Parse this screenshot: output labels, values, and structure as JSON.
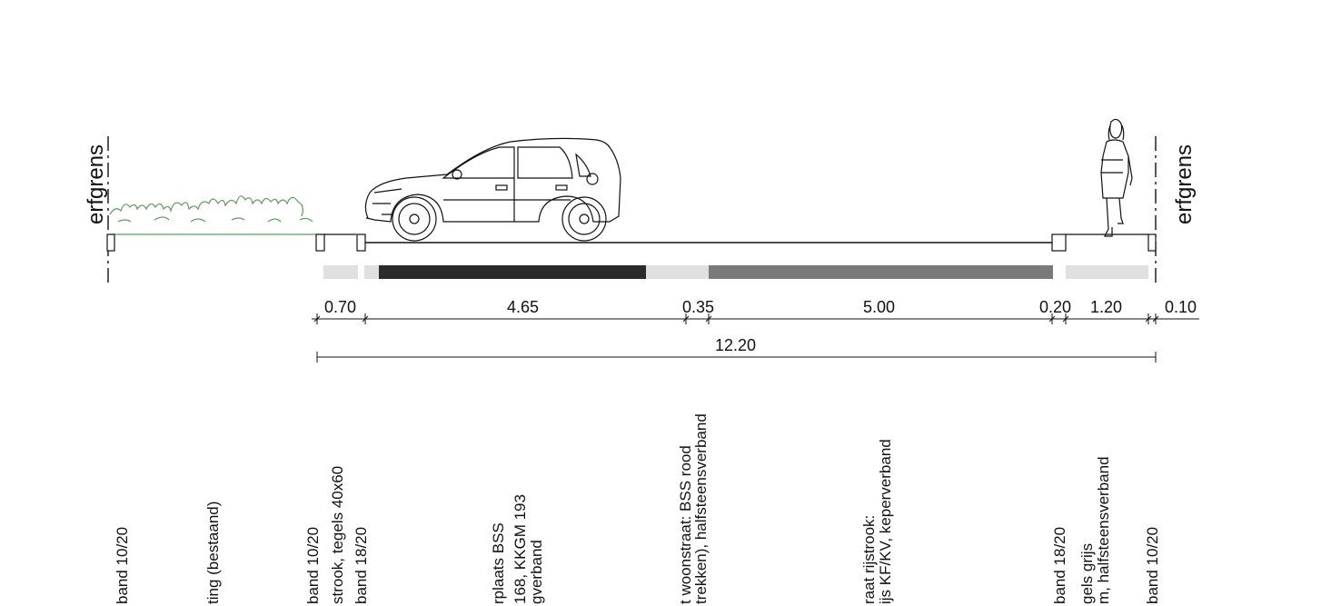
{
  "boundary_left": "erfgrens",
  "boundary_right": "erfgrens",
  "dimensions": [
    "0.70",
    "4.65",
    "0.35",
    "5.00",
    "0.20",
    "1.20",
    "0.10"
  ],
  "total": "12.20",
  "labels": {
    "a": [
      "band 10/20"
    ],
    "b": [
      "ting (bestaand)"
    ],
    "c": [
      "band 10/20",
      "strook, tegels 40x60",
      "band 18/20"
    ],
    "d": [
      "rplaats BSS",
      "168, KKGM 193",
      "gverband"
    ],
    "e": [
      "t woonstraat: BSS rood",
      "trekken), halfsteensverband"
    ],
    "f": [
      "raat rijstrook:",
      "ijs KF/KV, keperverband"
    ],
    "g": [
      "band 18/20"
    ],
    "h": [
      "gels grijs",
      "m, halfsteensverband"
    ],
    "i": [
      "band 10/20"
    ]
  },
  "colors": {
    "line": "#111111",
    "hedge": "#5a9e5a",
    "asphalt_dark": "#2b2b2b",
    "pavement_mid": "#7a7a7a",
    "pavement_light": "#e0e0e0"
  },
  "icons": [
    "car-icon",
    "pedestrian-icon",
    "hedge-icon"
  ]
}
